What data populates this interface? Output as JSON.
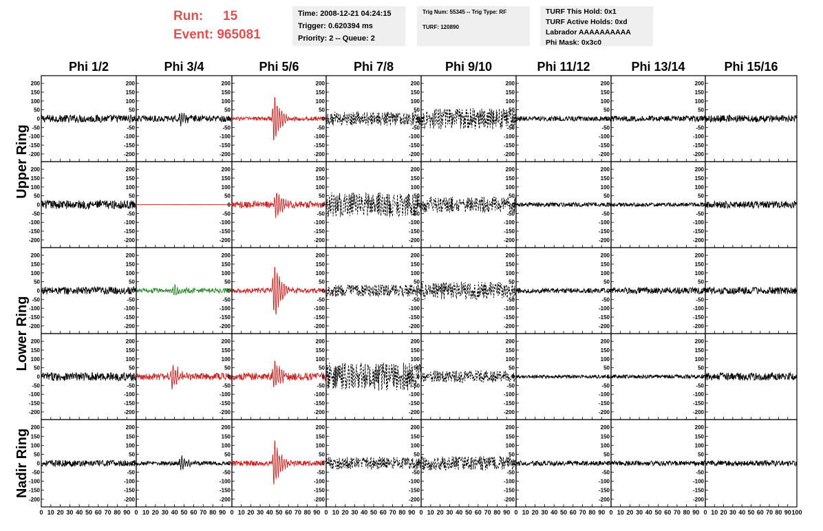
{
  "header": {
    "run_label": "Run:",
    "run_value": "15",
    "event_label": "Event:",
    "event_value": "965081",
    "run_color": "#e05050"
  },
  "info_time": {
    "time": "Time: 2008-12-21 04:24:15",
    "trigger": "Trigger: 0.620394 ms",
    "priority": "Priority: 2 -- Queue: 2"
  },
  "info_trig": {
    "trig": "Trig Num: 55345 -- Trig Type: RF",
    "turf": "TURF: 120890"
  },
  "info_turf": {
    "hold": "TURF This Hold: 0x1",
    "active": "TURF Active Holds: 0xd",
    "labrador": "Labrador AAAAAAAAAA",
    "mask": "Phi Mask: 0x3c0"
  },
  "chart_data": {
    "type": "line",
    "columns": [
      "Phi 1/2",
      "Phi 3/4",
      "Phi 5/6",
      "Phi 7/8",
      "Phi 9/10",
      "Phi 11/12",
      "Phi 13/14",
      "Phi 15/16"
    ],
    "row_groups": [
      {
        "label": "Upper Ring",
        "rows": [
          0,
          1
        ]
      },
      {
        "label": "Lower Ring",
        "rows": [
          2,
          3
        ]
      },
      {
        "label": "Nadir Ring",
        "rows": [
          4
        ]
      }
    ],
    "xlim": [
      0,
      100
    ],
    "x_ticks": [
      "0",
      "10",
      "20",
      "30",
      "40",
      "50",
      "60",
      "70",
      "80",
      "90",
      "100"
    ],
    "ylim": [
      -220,
      220
    ],
    "y_ticks": [
      200,
      150,
      100,
      50,
      0,
      -50,
      -100,
      -150,
      -200
    ],
    "colors": {
      "black": "#000000",
      "red": "#cc2222",
      "green": "#2a8a2a"
    },
    "panels": [
      [
        {
          "color": "black",
          "style": "solid",
          "amp": 22,
          "pulse": 0,
          "pulse_at": 0
        },
        {
          "color": "black",
          "style": "solid",
          "amp": 18,
          "pulse": 45,
          "pulse_at": 47
        },
        {
          "color": "red",
          "style": "solid",
          "amp": 12,
          "pulse": 190,
          "pulse_at": 45
        },
        {
          "color": "black",
          "style": "dashed",
          "amp": 40,
          "pulse": 0,
          "pulse_at": 0
        },
        {
          "color": "black",
          "style": "dashed",
          "amp": 60,
          "pulse": 0,
          "pulse_at": 0
        },
        {
          "color": "black",
          "style": "solid",
          "amp": 14,
          "pulse": 0,
          "pulse_at": 0
        },
        {
          "color": "black",
          "style": "solid",
          "amp": 16,
          "pulse": 0,
          "pulse_at": 0
        },
        {
          "color": "black",
          "style": "solid",
          "amp": 20,
          "pulse": 0,
          "pulse_at": 0
        }
      ],
      [
        {
          "color": "black",
          "style": "solid",
          "amp": 25,
          "pulse": 0,
          "pulse_at": 0
        },
        {
          "color": "red",
          "style": "solid",
          "amp": 1,
          "pulse": 0,
          "pulse_at": 0
        },
        {
          "color": "red",
          "style": "solid",
          "amp": 20,
          "pulse": 90,
          "pulse_at": 47
        },
        {
          "color": "black",
          "style": "dashed",
          "amp": 70,
          "pulse": 0,
          "pulse_at": 0
        },
        {
          "color": "black",
          "style": "dashed",
          "amp": 45,
          "pulse": 0,
          "pulse_at": 0
        },
        {
          "color": "black",
          "style": "solid",
          "amp": 12,
          "pulse": 0,
          "pulse_at": 0
        },
        {
          "color": "black",
          "style": "solid",
          "amp": 11,
          "pulse": 0,
          "pulse_at": 0
        },
        {
          "color": "black",
          "style": "solid",
          "amp": 20,
          "pulse": 0,
          "pulse_at": 0
        }
      ],
      [
        {
          "color": "black",
          "style": "solid",
          "amp": 22,
          "pulse": 0,
          "pulse_at": 0
        },
        {
          "color": "green",
          "style": "solid",
          "amp": 14,
          "pulse": 45,
          "pulse_at": 40
        },
        {
          "color": "red",
          "style": "solid",
          "amp": 15,
          "pulse": 200,
          "pulse_at": 45
        },
        {
          "color": "black",
          "style": "dashed",
          "amp": 35,
          "pulse": 0,
          "pulse_at": 0
        },
        {
          "color": "black",
          "style": "dashed",
          "amp": 50,
          "pulse": 0,
          "pulse_at": 0
        },
        {
          "color": "black",
          "style": "solid",
          "amp": 14,
          "pulse": 0,
          "pulse_at": 0
        },
        {
          "color": "black",
          "style": "solid",
          "amp": 18,
          "pulse": 0,
          "pulse_at": 0
        },
        {
          "color": "black",
          "style": "solid",
          "amp": 20,
          "pulse": 0,
          "pulse_at": 0
        }
      ],
      [
        {
          "color": "black",
          "style": "solid",
          "amp": 24,
          "pulse": 0,
          "pulse_at": 0
        },
        {
          "color": "red",
          "style": "solid",
          "amp": 20,
          "pulse": 100,
          "pulse_at": 38
        },
        {
          "color": "red",
          "style": "solid",
          "amp": 22,
          "pulse": 110,
          "pulse_at": 45
        },
        {
          "color": "black",
          "style": "dashed",
          "amp": 80,
          "pulse": 0,
          "pulse_at": 0
        },
        {
          "color": "black",
          "style": "dashed",
          "amp": 35,
          "pulse": 0,
          "pulse_at": 0
        },
        {
          "color": "black",
          "style": "solid",
          "amp": 10,
          "pulse": 0,
          "pulse_at": 0
        },
        {
          "color": "black",
          "style": "solid",
          "amp": 11,
          "pulse": 0,
          "pulse_at": 0
        },
        {
          "color": "black",
          "style": "solid",
          "amp": 22,
          "pulse": 0,
          "pulse_at": 0
        }
      ],
      [
        {
          "color": "black",
          "style": "solid",
          "amp": 18,
          "pulse": 0,
          "pulse_at": 0
        },
        {
          "color": "black",
          "style": "solid",
          "amp": 12,
          "pulse": 55,
          "pulse_at": 47
        },
        {
          "color": "red",
          "style": "solid",
          "amp": 15,
          "pulse": 180,
          "pulse_at": 45
        },
        {
          "color": "black",
          "style": "dashed",
          "amp": 35,
          "pulse": 0,
          "pulse_at": 0
        },
        {
          "color": "black",
          "style": "dashed",
          "amp": 40,
          "pulse": 0,
          "pulse_at": 0
        },
        {
          "color": "black",
          "style": "solid",
          "amp": 14,
          "pulse": 0,
          "pulse_at": 0
        },
        {
          "color": "black",
          "style": "solid",
          "amp": 14,
          "pulse": 0,
          "pulse_at": 0
        },
        {
          "color": "black",
          "style": "solid",
          "amp": 16,
          "pulse": 0,
          "pulse_at": 0
        }
      ]
    ]
  }
}
